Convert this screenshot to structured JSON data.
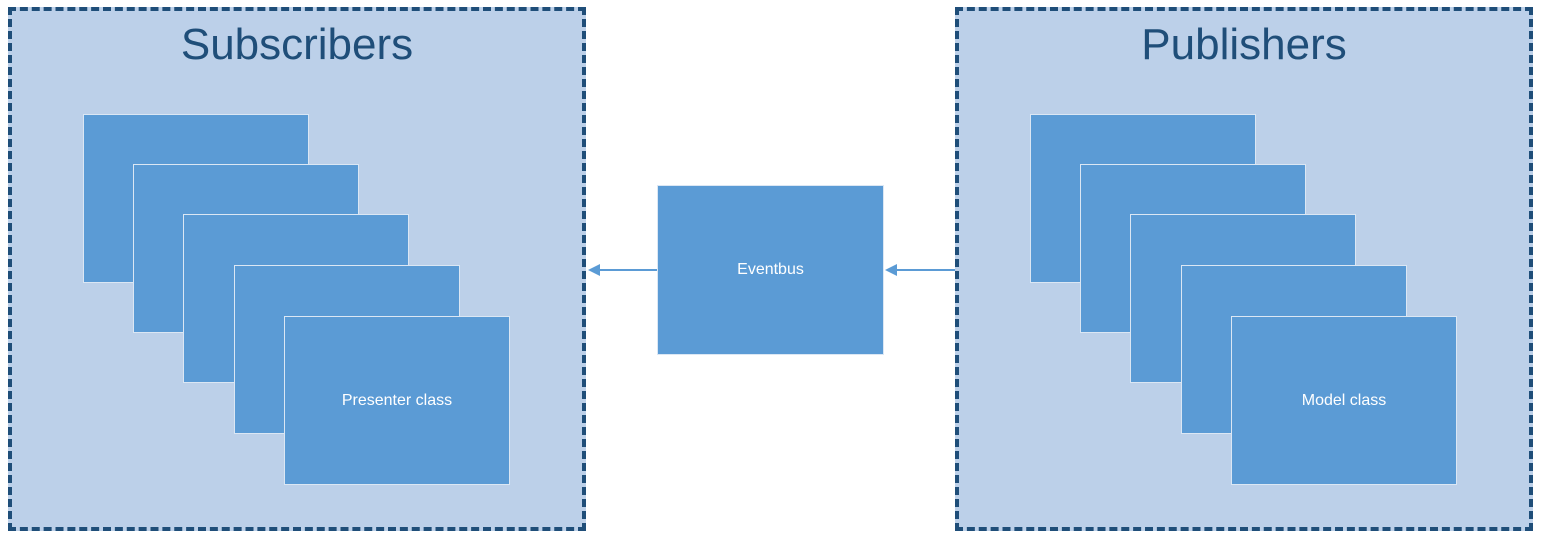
{
  "subscribers": {
    "title": "Subscribers",
    "front_card_label": "Presenter class"
  },
  "publishers": {
    "title": "Publishers",
    "front_card_label": "Model class"
  },
  "eventbus": {
    "label": "Eventbus"
  },
  "colors": {
    "group_fill": "#bcd0e9",
    "group_border": "#1f4e79",
    "box_fill": "#5b9bd5",
    "arrow": "#5b9bd5"
  }
}
